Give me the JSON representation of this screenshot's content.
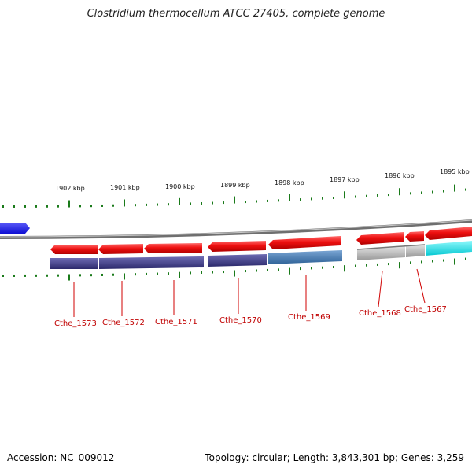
{
  "title": "Clostridium thermocellum ATCC 27405, complete genome",
  "footer": {
    "accession": "Accession: NC_009012",
    "stats": "Topology: circular; Length: 3,843,301 bp; Genes: 3,259"
  },
  "ruler_labels": [
    "1902 kbp",
    "1901 kbp",
    "1900 kbp",
    "1899 kbp",
    "1898 kbp",
    "1897 kbp",
    "1896 kbp",
    "1895 kbp"
  ],
  "genes": [
    "Cthe_1573",
    "Cthe_1572",
    "Cthe_1571",
    "Cthe_1570",
    "Cthe_1569",
    "Cthe_1568",
    "Cthe_1567"
  ],
  "colors": {
    "gene_arrow": "#e8101a",
    "cog_dark": "#3d3b86",
    "cog_steel": "#4a7fb5",
    "cog_gray": "#b5b5b5",
    "cog_cyan": "#11e6ee",
    "left_arrow": "#1414ee",
    "ticks": "#1a7a1a",
    "backbone": "#8a8a8a",
    "label": "#c00000"
  }
}
